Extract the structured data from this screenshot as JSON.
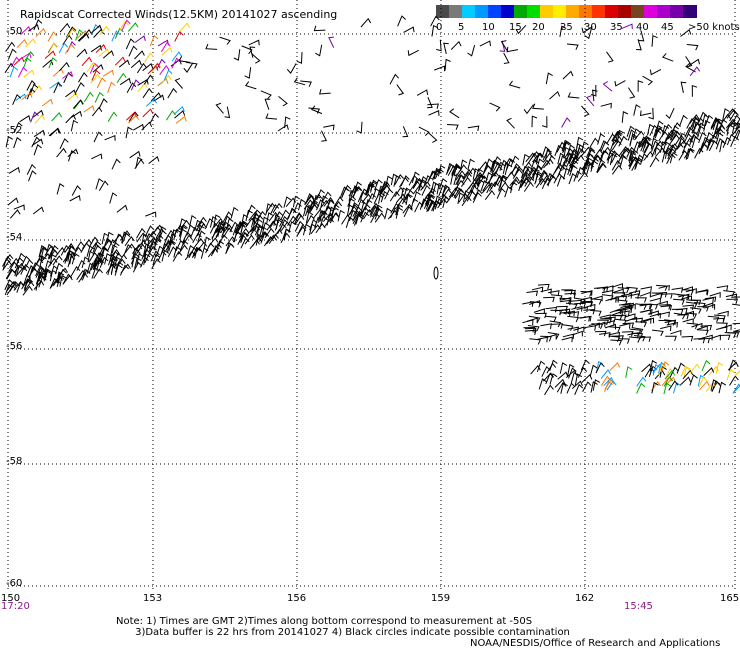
{
  "title": "Rapidscat Corrected Winds(12.5KM) 20141027 ascending",
  "legend": {
    "colors": [
      "#4a4a4a",
      "#7a7a7a",
      "#00ccff",
      "#0099ff",
      "#0044ff",
      "#0000cc",
      "#00aa00",
      "#00dd00",
      "#ffcc00",
      "#ffee00",
      "#ffaa00",
      "#ff7700",
      "#ff3300",
      "#dd0000",
      "#aa0000",
      "#774422",
      "#dd00dd",
      "#aa00cc",
      "#7700aa",
      "#330077"
    ],
    "ticks": [
      "0",
      "5",
      "10",
      "15",
      "20",
      "25",
      "30",
      "35",
      "40",
      "45"
    ],
    "unit": ">50 knots"
  },
  "axes": {
    "x_ticks": [
      "150",
      "153",
      "156",
      "159",
      "162",
      "165"
    ],
    "y_ticks": [
      "-50",
      "-52",
      "-54",
      "-56",
      "-58",
      "-60"
    ],
    "x_range": [
      150,
      165
    ],
    "y_range": [
      -60,
      -50
    ]
  },
  "times": {
    "left": "17:20",
    "right": "15:45"
  },
  "notes": {
    "line1": "Note: 1) Times are GMT 2)Times along bottom correspond to measurement at -50S",
    "line2": "3)Data buffer is 22 hrs from 20141027 4) Black circles indicate possible contamination"
  },
  "credit": "NOAA/NESDIS/Office of Research and Applications"
}
